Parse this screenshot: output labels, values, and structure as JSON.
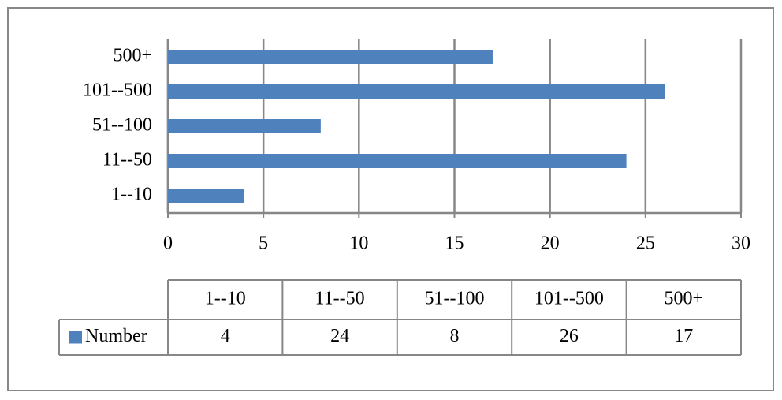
{
  "chart_data": {
    "type": "bar",
    "orientation": "horizontal",
    "categories": [
      "1--10",
      "11--50",
      "51--100",
      "101--500",
      "500+"
    ],
    "series": [
      {
        "name": "Number",
        "color": "#4f81bd",
        "values": [
          4,
          24,
          8,
          26,
          17
        ]
      }
    ],
    "xlim": [
      0,
      30
    ],
    "xticks": [
      0,
      5,
      10,
      15,
      20,
      25,
      30
    ],
    "grid": true,
    "data_table": true
  }
}
